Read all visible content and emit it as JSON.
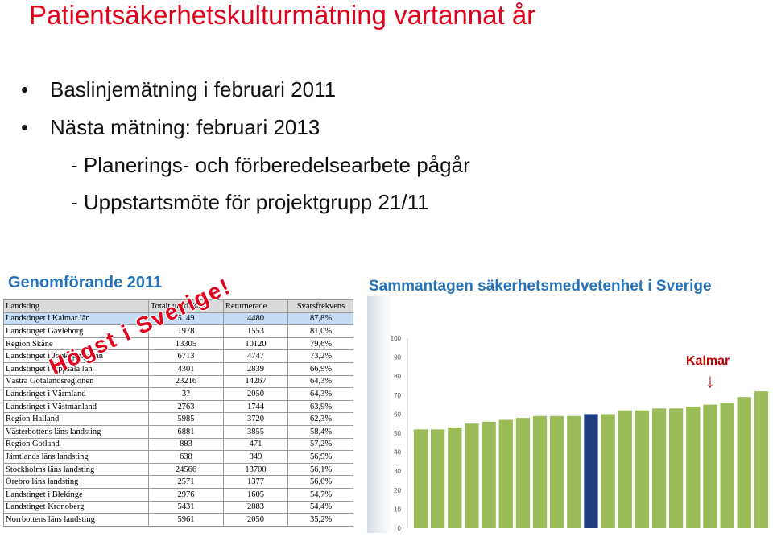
{
  "title": "Patientsäkerhetskulturmätning vartannat år",
  "bullets": [
    {
      "marker": "•",
      "text": "Baslinjemätning i februari 2011"
    },
    {
      "marker": "•",
      "text": "Nästa mätning: februari 2013"
    },
    {
      "marker": "",
      "text": "- Planerings- och förberedelsearbete pågår"
    },
    {
      "marker": "",
      "text": "- Uppstartsmöte för projektgrupp 21/11"
    }
  ],
  "left_heading": "Genomförande 2011",
  "right_heading": "Sammantagen säkerhetsmedvetenhet i Sverige",
  "table": {
    "headers": [
      "Landsting",
      "Totalt utskickade",
      "Returnerade",
      "Svarsfrekvens"
    ],
    "rows": [
      [
        "Landstinget i Kalmar län",
        "5149",
        "4480",
        "87,8%"
      ],
      [
        "Landstinget Gävleborg",
        "1978",
        "1553",
        "81,0%"
      ],
      [
        "Region Skåne",
        "13305",
        "10120",
        "79,6%"
      ],
      [
        "Landstinget i Jönköpings län",
        "6713",
        "4747",
        "73,2%"
      ],
      [
        "Landstinget i Uppsala län",
        "4301",
        "2839",
        "66,9%"
      ],
      [
        "Västra Götalandsregionen",
        "23216",
        "14267",
        "64,3%"
      ],
      [
        "Landstinget i Värmland",
        "3?",
        "2050",
        "64,3%"
      ],
      [
        "Landstinget i Västmanland",
        "2763",
        "1744",
        "63,9%"
      ],
      [
        "Region Halland",
        "5985",
        "3720",
        "62,3%"
      ],
      [
        "Västerbottens läns landsting",
        "6881",
        "3855",
        "58,4%"
      ],
      [
        "Region Gotland",
        "883",
        "471",
        "57,2%"
      ],
      [
        "Jämtlands läns landsting",
        "638",
        "349",
        "56,9%"
      ],
      [
        "Stockholms läns landsting",
        "24566",
        "13700",
        "56,1%"
      ],
      [
        "Örebro läns landsting",
        "2571",
        "1377",
        "56,0%"
      ],
      [
        "Landstinget i Blekinge",
        "2976",
        "1605",
        "54,7%"
      ],
      [
        "Landstinget Kronoberg",
        "5431",
        "2883",
        "54,4%"
      ],
      [
        "Norrbottens läns landsting",
        "5961",
        "2050",
        "35,2%"
      ]
    ],
    "highlight_row": 0
  },
  "stamp_text": "Högst i Sverige!",
  "kalmar_label": "Kalmar",
  "kalmar_arrow": "↓",
  "colors": {
    "title": "#e0001b",
    "heading": "#2673b8",
    "bar": "#9bbb59",
    "bar_highlight": "#1f3e82",
    "highlight_row": "#c5dcf2"
  },
  "chart_data": {
    "type": "bar",
    "title": "",
    "xlabel": "",
    "ylabel": "",
    "ylim": [
      0,
      100
    ],
    "yticks": [
      0,
      10,
      20,
      30,
      40,
      50,
      60,
      70,
      80,
      90,
      100
    ],
    "values": [
      52,
      52,
      53,
      55,
      56,
      57,
      58,
      59,
      59,
      59,
      60,
      60,
      62,
      62,
      63,
      63,
      64,
      65,
      66,
      69,
      72
    ],
    "highlight_index": 10
  }
}
